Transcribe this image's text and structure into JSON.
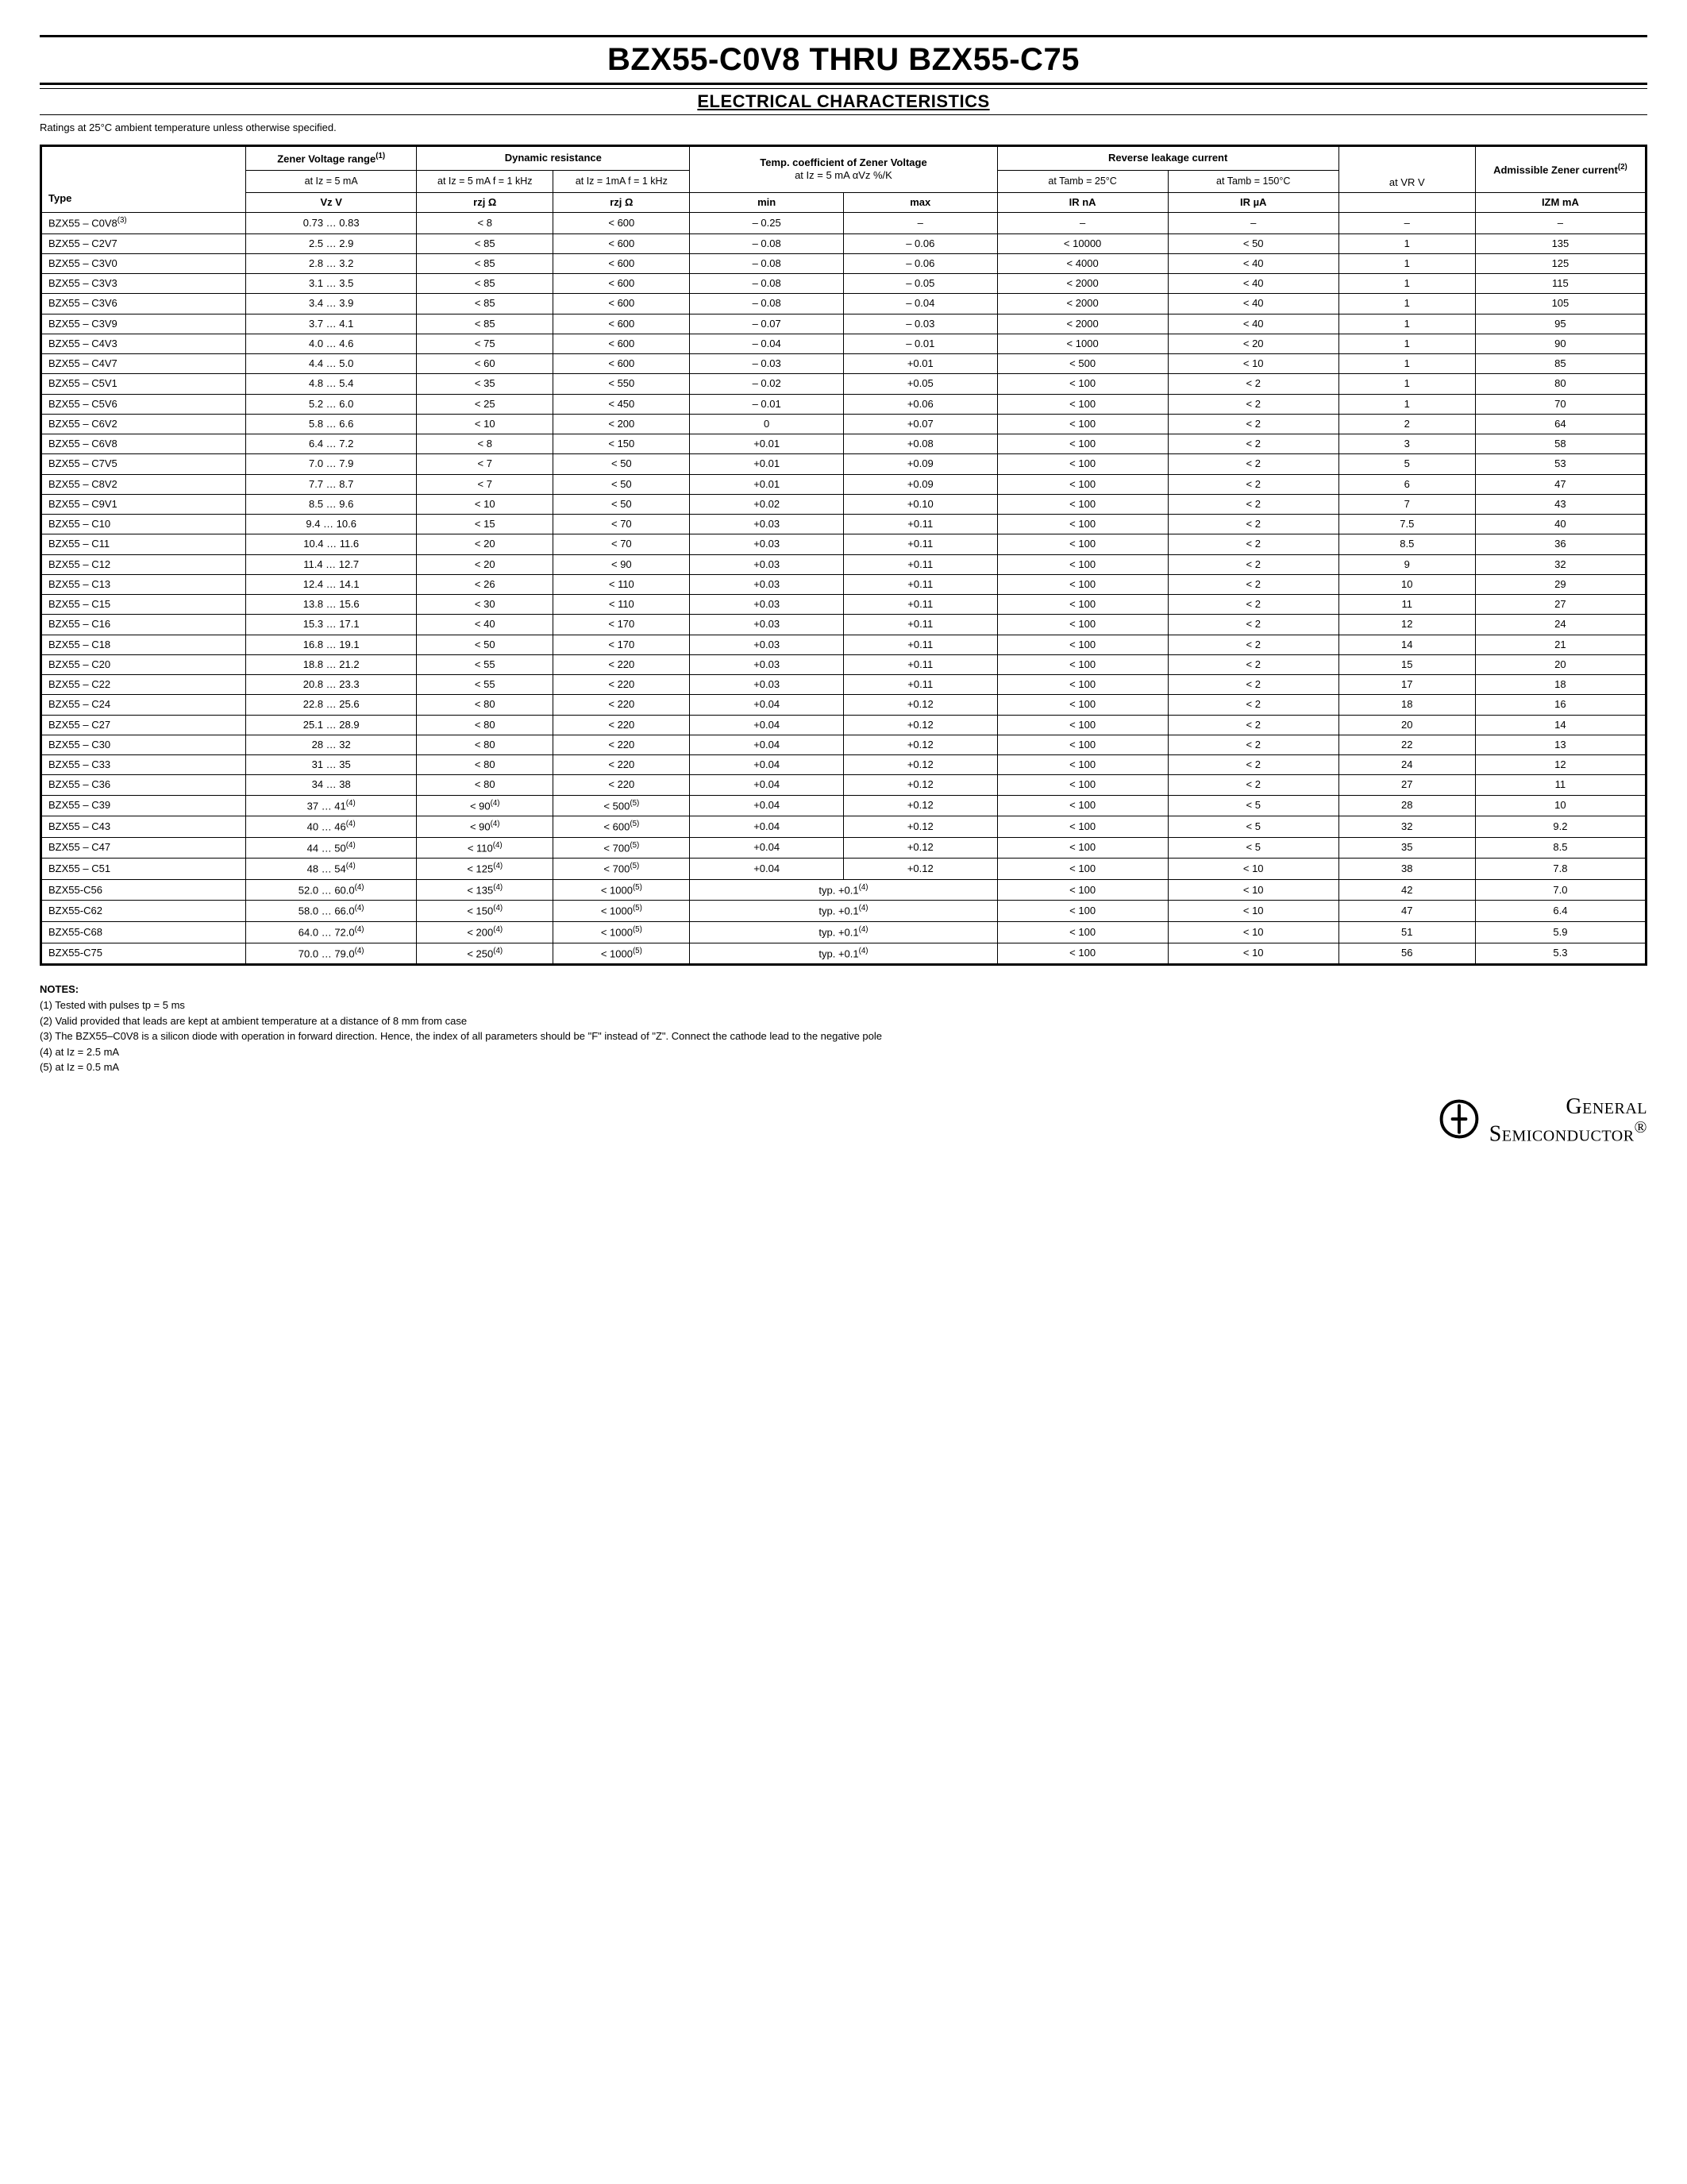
{
  "title": "BZX55-C0V8 THRU BZX55-C75",
  "subtitle": "ELECTRICAL CHARACTERISTICS",
  "ratings_note": "Ratings at 25°C ambient temperature unless otherwise specified.",
  "table": {
    "head": {
      "zener_range": "Zener Voltage range",
      "zener_range_sup": "(1)",
      "zener_range_cond": "at Iz = 5 mA",
      "dyn_res": "Dynamic resistance",
      "dyn_res_c1": "at Iz = 5 mA f = 1 kHz",
      "dyn_res_c2": "at Iz = 1mA f = 1 kHz",
      "tc": "Temp. coefficient of Zener Voltage",
      "tc_cond": "at Iz = 5 mA αVz %/K",
      "rlc": "Reverse leakage current",
      "rlc_c1": "at Tamb = 25°C",
      "rlc_c2": "at Tamb = 150°C",
      "vr": "at VR V",
      "adm": "Admissible Zener current",
      "adm_sup": "(2)",
      "type": "Type",
      "vz": "Vz V",
      "rzj1": "rzj Ω",
      "rzj2": "rzj Ω",
      "min": "min",
      "max": "max",
      "ir25": "IR nA",
      "ir150": "IR µA",
      "izm": "IZM mA"
    },
    "rows": [
      {
        "type": "BZX55 – C0V8",
        "sup": "(3)",
        "vz": "0.73 … 0.83",
        "r1": "< 8",
        "r2": "< 600",
        "min": "– 0.25",
        "max": "–",
        "ir25": "–",
        "ir150": "–",
        "vr": "–",
        "izm": "–"
      },
      {
        "type": "BZX55 – C2V7",
        "vz": "2.5 … 2.9",
        "r1": "< 85",
        "r2": "< 600",
        "min": "– 0.08",
        "max": "– 0.06",
        "ir25": "< 10000",
        "ir150": "< 50",
        "vr": "1",
        "izm": "135"
      },
      {
        "type": "BZX55 – C3V0",
        "vz": "2.8 … 3.2",
        "r1": "< 85",
        "r2": "< 600",
        "min": "– 0.08",
        "max": "– 0.06",
        "ir25": "< 4000",
        "ir150": "< 40",
        "vr": "1",
        "izm": "125"
      },
      {
        "type": "BZX55 – C3V3",
        "vz": "3.1 … 3.5",
        "r1": "< 85",
        "r2": "< 600",
        "min": "– 0.08",
        "max": "– 0.05",
        "ir25": "< 2000",
        "ir150": "< 40",
        "vr": "1",
        "izm": "115"
      },
      {
        "type": "BZX55 – C3V6",
        "vz": "3.4 … 3.9",
        "r1": "< 85",
        "r2": "< 600",
        "min": "– 0.08",
        "max": "– 0.04",
        "ir25": "< 2000",
        "ir150": "< 40",
        "vr": "1",
        "izm": "105"
      },
      {
        "type": "BZX55 – C3V9",
        "vz": "3.7 … 4.1",
        "r1": "< 85",
        "r2": "< 600",
        "min": "– 0.07",
        "max": "– 0.03",
        "ir25": "< 2000",
        "ir150": "< 40",
        "vr": "1",
        "izm": "95"
      },
      {
        "type": "BZX55 – C4V3",
        "vz": "4.0 … 4.6",
        "r1": "< 75",
        "r2": "< 600",
        "min": "– 0.04",
        "max": "– 0.01",
        "ir25": "< 1000",
        "ir150": "< 20",
        "vr": "1",
        "izm": "90"
      },
      {
        "type": "BZX55 – C4V7",
        "vz": "4.4 … 5.0",
        "r1": "< 60",
        "r2": "< 600",
        "min": "– 0.03",
        "max": "+0.01",
        "ir25": "< 500",
        "ir150": "< 10",
        "vr": "1",
        "izm": "85"
      },
      {
        "type": "BZX55 – C5V1",
        "vz": "4.8 … 5.4",
        "r1": "< 35",
        "r2": "< 550",
        "min": "– 0.02",
        "max": "+0.05",
        "ir25": "< 100",
        "ir150": "< 2",
        "vr": "1",
        "izm": "80"
      },
      {
        "type": "BZX55 – C5V6",
        "vz": "5.2 … 6.0",
        "r1": "< 25",
        "r2": "< 450",
        "min": "– 0.01",
        "max": "+0.06",
        "ir25": "< 100",
        "ir150": "< 2",
        "vr": "1",
        "izm": "70"
      },
      {
        "type": "BZX55 – C6V2",
        "vz": "5.8 … 6.6",
        "r1": "< 10",
        "r2": "< 200",
        "min": "0",
        "max": "+0.07",
        "ir25": "< 100",
        "ir150": "< 2",
        "vr": "2",
        "izm": "64"
      },
      {
        "type": "BZX55 – C6V8",
        "vz": "6.4 … 7.2",
        "r1": "< 8",
        "r2": "< 150",
        "min": "+0.01",
        "max": "+0.08",
        "ir25": "< 100",
        "ir150": "< 2",
        "vr": "3",
        "izm": "58"
      },
      {
        "type": "BZX55 – C7V5",
        "vz": "7.0 … 7.9",
        "r1": "< 7",
        "r2": "< 50",
        "min": "+0.01",
        "max": "+0.09",
        "ir25": "< 100",
        "ir150": "< 2",
        "vr": "5",
        "izm": "53"
      },
      {
        "type": "BZX55 – C8V2",
        "vz": "7.7 … 8.7",
        "r1": "< 7",
        "r2": "< 50",
        "min": "+0.01",
        "max": "+0.09",
        "ir25": "< 100",
        "ir150": "< 2",
        "vr": "6",
        "izm": "47"
      },
      {
        "type": "BZX55 – C9V1",
        "vz": "8.5 … 9.6",
        "r1": "< 10",
        "r2": "< 50",
        "min": "+0.02",
        "max": "+0.10",
        "ir25": "< 100",
        "ir150": "< 2",
        "vr": "7",
        "izm": "43"
      },
      {
        "type": "BZX55 – C10",
        "vz": "9.4 … 10.6",
        "r1": "< 15",
        "r2": "< 70",
        "min": "+0.03",
        "max": "+0.11",
        "ir25": "< 100",
        "ir150": "< 2",
        "vr": "7.5",
        "izm": "40"
      },
      {
        "type": "BZX55 – C11",
        "vz": "10.4 … 11.6",
        "r1": "< 20",
        "r2": "< 70",
        "min": "+0.03",
        "max": "+0.11",
        "ir25": "< 100",
        "ir150": "< 2",
        "vr": "8.5",
        "izm": "36"
      },
      {
        "type": "BZX55 – C12",
        "vz": "11.4 … 12.7",
        "r1": "< 20",
        "r2": "< 90",
        "min": "+0.03",
        "max": "+0.11",
        "ir25": "< 100",
        "ir150": "< 2",
        "vr": "9",
        "izm": "32"
      },
      {
        "type": "BZX55 – C13",
        "vz": "12.4 … 14.1",
        "r1": "< 26",
        "r2": "< 110",
        "min": "+0.03",
        "max": "+0.11",
        "ir25": "< 100",
        "ir150": "< 2",
        "vr": "10",
        "izm": "29"
      },
      {
        "type": "BZX55 – C15",
        "vz": "13.8 … 15.6",
        "r1": "< 30",
        "r2": "< 110",
        "min": "+0.03",
        "max": "+0.11",
        "ir25": "< 100",
        "ir150": "< 2",
        "vr": "11",
        "izm": "27"
      },
      {
        "type": "BZX55 – C16",
        "vz": "15.3 … 17.1",
        "r1": "< 40",
        "r2": "< 170",
        "min": "+0.03",
        "max": "+0.11",
        "ir25": "< 100",
        "ir150": "< 2",
        "vr": "12",
        "izm": "24"
      },
      {
        "type": "BZX55 – C18",
        "vz": "16.8 … 19.1",
        "r1": "< 50",
        "r2": "< 170",
        "min": "+0.03",
        "max": "+0.11",
        "ir25": "< 100",
        "ir150": "< 2",
        "vr": "14",
        "izm": "21"
      },
      {
        "type": "BZX55 – C20",
        "vz": "18.8 … 21.2",
        "r1": "< 55",
        "r2": "< 220",
        "min": "+0.03",
        "max": "+0.11",
        "ir25": "< 100",
        "ir150": "< 2",
        "vr": "15",
        "izm": "20"
      },
      {
        "type": "BZX55 – C22",
        "vz": "20.8 … 23.3",
        "r1": "< 55",
        "r2": "< 220",
        "min": "+0.03",
        "max": "+0.11",
        "ir25": "< 100",
        "ir150": "< 2",
        "vr": "17",
        "izm": "18"
      },
      {
        "type": "BZX55 – C24",
        "vz": "22.8 … 25.6",
        "r1": "< 80",
        "r2": "< 220",
        "min": "+0.04",
        "max": "+0.12",
        "ir25": "< 100",
        "ir150": "< 2",
        "vr": "18",
        "izm": "16"
      },
      {
        "type": "BZX55 – C27",
        "vz": "25.1 … 28.9",
        "r1": "< 80",
        "r2": "< 220",
        "min": "+0.04",
        "max": "+0.12",
        "ir25": "< 100",
        "ir150": "< 2",
        "vr": "20",
        "izm": "14"
      },
      {
        "type": "BZX55 – C30",
        "vz": "28 … 32",
        "r1": "< 80",
        "r2": "< 220",
        "min": "+0.04",
        "max": "+0.12",
        "ir25": "< 100",
        "ir150": "< 2",
        "vr": "22",
        "izm": "13"
      },
      {
        "type": "BZX55 – C33",
        "vz": "31 … 35",
        "r1": "< 80",
        "r2": "< 220",
        "min": "+0.04",
        "max": "+0.12",
        "ir25": "< 100",
        "ir150": "< 2",
        "vr": "24",
        "izm": "12"
      },
      {
        "type": "BZX55 – C36",
        "vz": "34 … 38",
        "r1": "< 80",
        "r2": "< 220",
        "min": "+0.04",
        "max": "+0.12",
        "ir25": "< 100",
        "ir150": "< 2",
        "vr": "27",
        "izm": "11"
      },
      {
        "type": "BZX55 – C39",
        "vz": "37 … 41",
        "vzs": "(4)",
        "r1": "< 90",
        "r1s": "(4)",
        "r2": "< 500",
        "r2s": "(5)",
        "min": "+0.04",
        "max": "+0.12",
        "ir25": "< 100",
        "ir150": "< 5",
        "vr": "28",
        "izm": "10"
      },
      {
        "type": "BZX55 – C43",
        "vz": "40 … 46",
        "vzs": "(4)",
        "r1": "< 90",
        "r1s": "(4)",
        "r2": "< 600",
        "r2s": "(5)",
        "min": "+0.04",
        "max": "+0.12",
        "ir25": "< 100",
        "ir150": "< 5",
        "vr": "32",
        "izm": "9.2"
      },
      {
        "type": "BZX55 – C47",
        "vz": "44 … 50",
        "vzs": "(4)",
        "r1": "< 110",
        "r1s": "(4)",
        "r2": "< 700",
        "r2s": "(5)",
        "min": "+0.04",
        "max": "+0.12",
        "ir25": "< 100",
        "ir150": "< 5",
        "vr": "35",
        "izm": "8.5"
      },
      {
        "type": "BZX55 – C51",
        "vz": "48 … 54",
        "vzs": "(4)",
        "r1": "< 125",
        "r1s": "(4)",
        "r2": "< 700",
        "r2s": "(5)",
        "min": "+0.04",
        "max": "+0.12",
        "ir25": "< 100",
        "ir150": "< 10",
        "vr": "38",
        "izm": "7.8"
      },
      {
        "type": "BZX55-C56",
        "vz": "52.0 … 60.0",
        "vzs": "(4)",
        "r1": "< 135",
        "r1s": "(4)",
        "r2": "< 1000",
        "r2s": "(5)",
        "span": "typ. +0.1",
        "sps": "(4)",
        "ir25": "< 100",
        "ir150": "< 10",
        "vr": "42",
        "izm": "7.0"
      },
      {
        "type": "BZX55-C62",
        "vz": "58.0 … 66.0",
        "vzs": "(4)",
        "r1": "< 150",
        "r1s": "(4)",
        "r2": "< 1000",
        "r2s": "(5)",
        "span": "typ. +0.1",
        "sps": "(4)",
        "ir25": "< 100",
        "ir150": "< 10",
        "vr": "47",
        "izm": "6.4"
      },
      {
        "type": "BZX55-C68",
        "vz": "64.0 … 72.0",
        "vzs": "(4)",
        "r1": "< 200",
        "r1s": "(4)",
        "r2": "< 1000",
        "r2s": "(5)",
        "span": "typ. +0.1",
        "sps": "(4)",
        "ir25": "< 100",
        "ir150": "< 10",
        "vr": "51",
        "izm": "5.9"
      },
      {
        "type": "BZX55-C75",
        "vz": "70.0 … 79.0",
        "vzs": "(4)",
        "r1": "< 250",
        "r1s": "(4)",
        "r2": "< 1000",
        "r2s": "(5)",
        "span": "typ. +0.1",
        "sps": "(4)",
        "ir25": "< 100",
        "ir150": "< 10",
        "vr": "56",
        "izm": "5.3"
      }
    ]
  },
  "notes": {
    "title": "NOTES:",
    "n1": "(1) Tested with pulses tp = 5 ms",
    "n2": "(2) Valid provided that leads are kept at ambient temperature at a distance of 8 mm from case",
    "n3": "(3) The BZX55–C0V8 is a silicon diode with operation in forward direction. Hence, the index of all parameters should be \"F\" instead of \"Z\". Connect the cathode lead to the negative pole",
    "n4": "(4) at Iz = 2.5 mA",
    "n5": "(5) at Iz = 0.5 mA"
  },
  "logo": {
    "line1": "General",
    "line2": "Semiconductor",
    "reg": "®"
  }
}
